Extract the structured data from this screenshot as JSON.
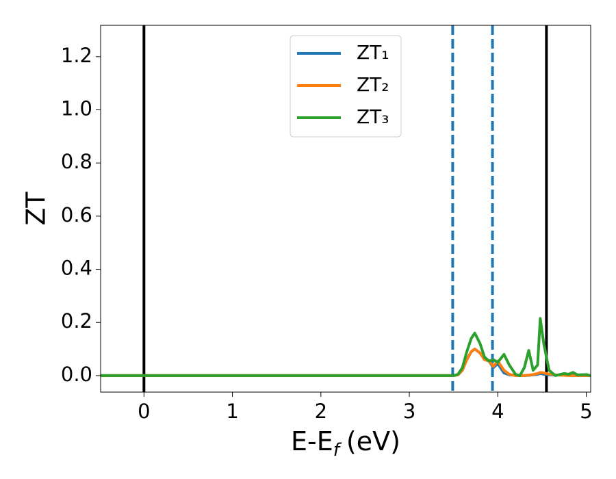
{
  "chart_data": {
    "type": "line",
    "y_label": "ZT",
    "x_label": {
      "text": "E-E",
      "subscript": "f",
      "unit": "(eV)"
    },
    "x": [
      -0.49,
      3.5,
      3.55,
      3.6,
      3.65,
      3.7,
      3.74,
      3.8,
      3.85,
      3.9,
      3.95,
      4.0,
      4.07,
      4.13,
      4.2,
      4.25,
      4.3,
      4.35,
      4.4,
      4.45,
      4.48,
      4.52,
      4.58,
      4.65,
      4.75,
      4.8,
      4.85,
      4.9,
      5.0,
      5.05
    ],
    "series": [
      {
        "name": "ZT₁",
        "color": "#1f77b4",
        "values": [
          0,
          0,
          0.003,
          0.02,
          0.06,
          0.09,
          0.1,
          0.085,
          0.06,
          0.055,
          0.03,
          0.045,
          0.01,
          0.003,
          0.001,
          0,
          0,
          0.001,
          0.003,
          0.005,
          0.008,
          0.005,
          0.003,
          0.002,
          0.002,
          0.001,
          0.001,
          0,
          0,
          0
        ]
      },
      {
        "name": "ZT₂",
        "color": "#ff7f0e",
        "values": [
          0,
          0,
          0.003,
          0.02,
          0.06,
          0.09,
          0.1,
          0.085,
          0.06,
          0.055,
          0.035,
          0.055,
          0.02,
          0.005,
          0,
          0,
          0,
          0.002,
          0.004,
          0.008,
          0.012,
          0.01,
          0.006,
          0.003,
          0.001,
          0,
          0,
          0,
          0,
          0
        ]
      },
      {
        "name": "ZT₃",
        "color": "#2ca02c",
        "values": [
          0,
          0,
          0.005,
          0.03,
          0.09,
          0.14,
          0.16,
          0.12,
          0.07,
          0.055,
          0.06,
          0.05,
          0.08,
          0.04,
          0.005,
          0,
          0.03,
          0.095,
          0.02,
          0.04,
          0.215,
          0.12,
          0.02,
          0,
          0.008,
          0.005,
          0.012,
          0.003,
          0.004,
          0
        ]
      }
    ],
    "vlines": [
      {
        "x": 0,
        "color": "#000000",
        "style": "solid"
      },
      {
        "x": 4.55,
        "color": "#000000",
        "style": "solid"
      },
      {
        "x": 3.49,
        "color": "#1f77b4",
        "style": "dashed"
      },
      {
        "x": 3.94,
        "color": "#1f77b4",
        "style": "dashed"
      }
    ],
    "xlim": [
      -0.49,
      5.05
    ],
    "ylim": [
      -0.062,
      1.318
    ],
    "xticks": [
      0,
      1,
      2,
      3,
      4,
      5
    ],
    "yticks": [
      {
        "value": 0,
        "label": "0.0"
      },
      0.2,
      0.4,
      0.6,
      0.8,
      {
        "value": 1,
        "label": "1.0"
      },
      1.2
    ],
    "legend": "upper center"
  }
}
